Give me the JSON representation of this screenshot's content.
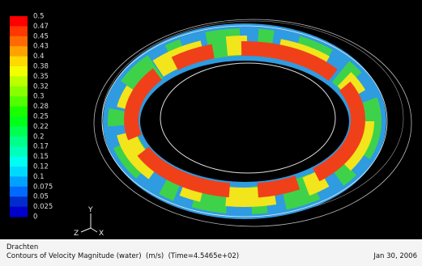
{
  "colorbar": {
    "labels": [
      "0.5",
      "0.47",
      "0.45",
      "0.43",
      "0.4",
      "0.38",
      "0.35",
      "0.32",
      "0.3",
      "0.28",
      "0.25",
      "0.22",
      "0.2",
      "0.17",
      "0.15",
      "0.12",
      "0.1",
      "0.075",
      "0.05",
      "0.025",
      "0"
    ]
  },
  "axes": {
    "y": "Y",
    "z": "Z",
    "x": "X"
  },
  "footer": {
    "location": "Drachten",
    "title": "Contours of Velocity Magnitude (water)  (m/s)  (Time=4.5465e+02)",
    "date": "Jan 30, 2006"
  }
}
